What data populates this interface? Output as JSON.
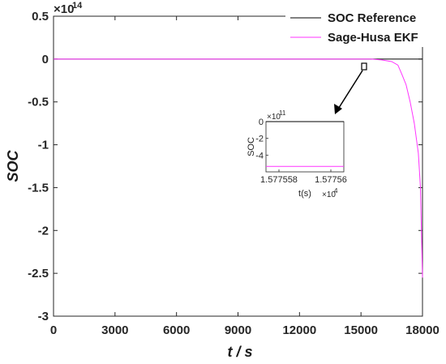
{
  "colors": {
    "reference": "#000000",
    "ekf": "#ff33ff",
    "axis": "#262626"
  },
  "chart_data": [
    {
      "type": "line",
      "title": "",
      "xlabel": "t / s",
      "ylabel": "SOC",
      "xlim": [
        0,
        18000
      ],
      "ylim": [
        -3,
        0.5
      ],
      "y_exponent_label": "×10",
      "y_exponent_power": "14",
      "x_tick_labels": [
        "0",
        "3000",
        "6000",
        "9000",
        "12000",
        "15000",
        "18000"
      ],
      "y_tick_labels": [
        "0.5",
        "0",
        "-0.5",
        "-1",
        "-1.5",
        "-2",
        "-2.5",
        "-3"
      ],
      "legend_position": "top-right",
      "series": [
        {
          "name": "SOC Reference",
          "color": "#000000",
          "x": [
            0,
            18000
          ],
          "y": [
            0,
            0
          ]
        },
        {
          "name": "Sage-Husa EKF",
          "color": "#ff33ff",
          "x": [
            0,
            15500,
            16000,
            16500,
            16800,
            17000,
            17200,
            17400,
            17600,
            17800,
            17900,
            18000
          ],
          "y": [
            0,
            0,
            -0.01,
            -0.03,
            -0.07,
            -0.18,
            -0.3,
            -0.5,
            -0.75,
            -1.1,
            -1.5,
            -2.55
          ]
        }
      ]
    },
    {
      "type": "line",
      "title": "",
      "xlabel": "t(s)",
      "ylabel": "SOC",
      "xlim": [
        1.5775575,
        1.5775605
      ],
      "ylim": [
        -6,
        0
      ],
      "x_tick_labels": [
        "1.577558",
        "1.57756"
      ],
      "y_tick_labels": [
        "0",
        "-2",
        "-4"
      ],
      "x_exponent_label": "×10",
      "x_exponent_power": "4",
      "y_exponent_label": "×10",
      "y_exponent_power": "11",
      "series": [
        {
          "name": "SOC Reference",
          "color": "#000000",
          "x": [
            1.5775575,
            1.5775605
          ],
          "y": [
            0,
            0
          ]
        },
        {
          "name": "Sage-Husa EKF",
          "color": "#ff33ff",
          "x": [
            1.5775575,
            1.5775605
          ],
          "y": [
            -5.35,
            -5.35
          ]
        }
      ]
    }
  ]
}
